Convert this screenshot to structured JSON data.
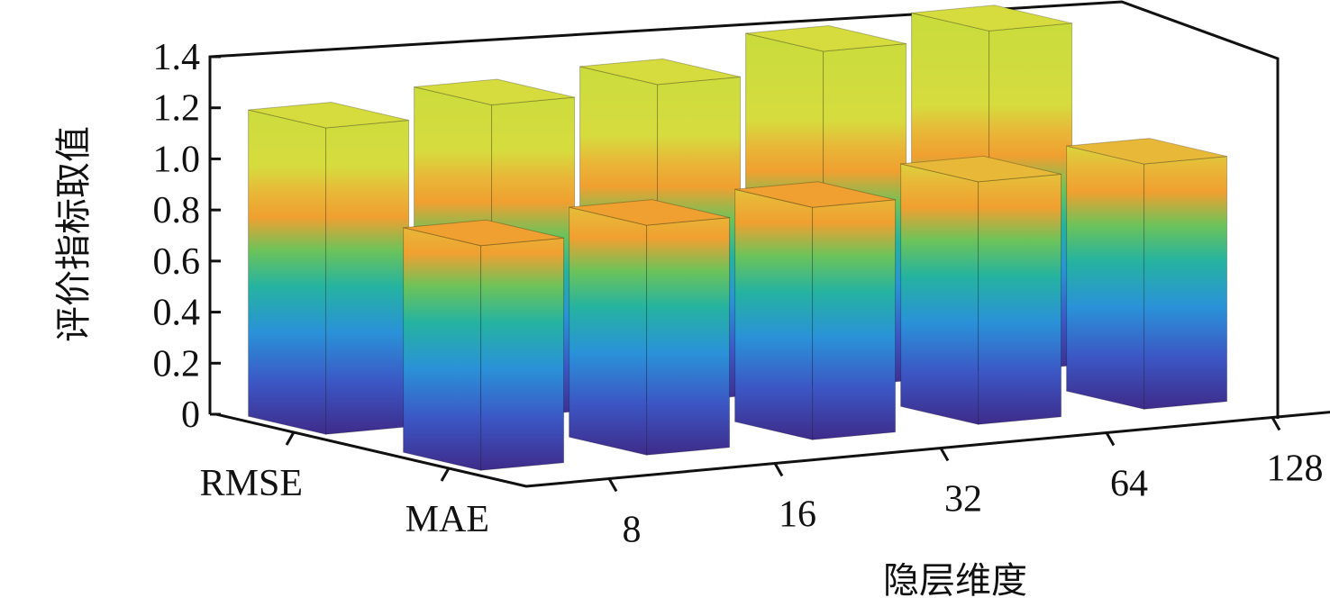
{
  "chart_data": {
    "type": "bar3d",
    "ylabel": "评价指标取值",
    "xlabel": "隐层维度",
    "categories": [
      "8",
      "16",
      "32",
      "64",
      "128"
    ],
    "series": [
      {
        "name": "RMSE",
        "values": [
          1.2,
          1.23,
          1.25,
          1.32,
          1.34
        ]
      },
      {
        "name": "MAE",
        "values": [
          0.88,
          0.9,
          0.91,
          0.95,
          0.96
        ]
      }
    ],
    "ylim": [
      0,
      1.4
    ],
    "yticks": [
      0,
      0.2,
      0.4,
      0.6,
      0.8,
      {
        "value": 1,
        "label": "1.0"
      },
      1.2,
      1.4
    ]
  }
}
